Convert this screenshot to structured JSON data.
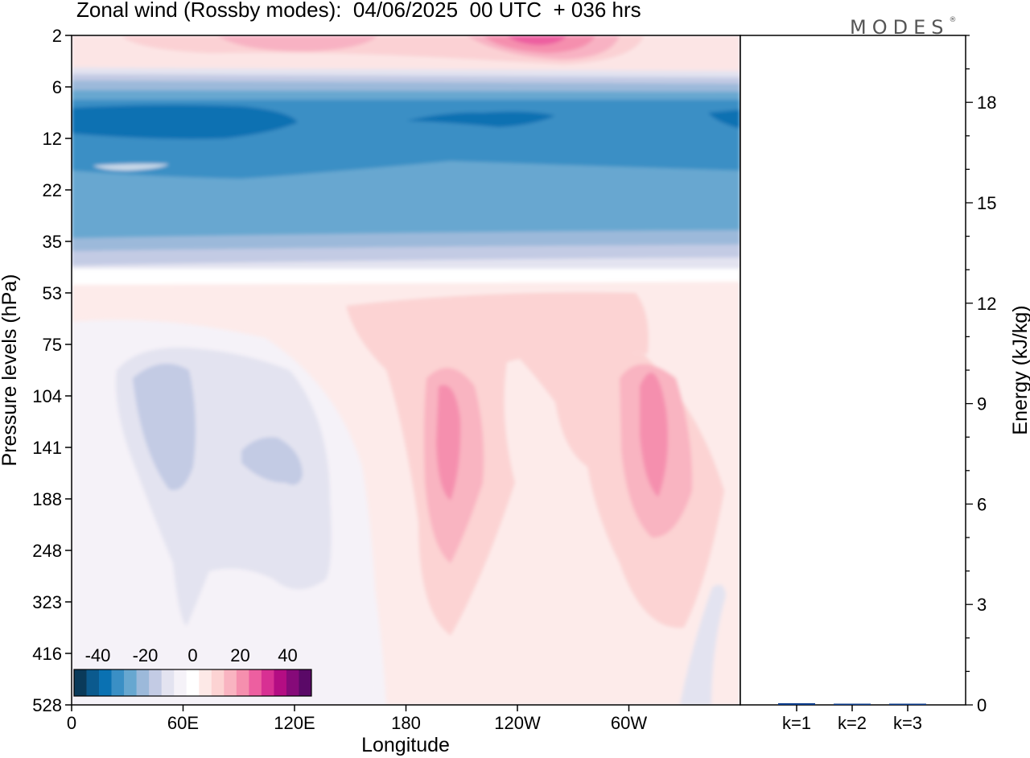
{
  "title": "Zonal wind (Rossby modes):  04/06/2025  00 UTC  + 036 hrs",
  "logo_text": "MODES",
  "chart_data": [
    {
      "type": "heatmap",
      "title": "Zonal wind (Rossby modes):  04/06/2025  00 UTC  + 036 hrs",
      "xlabel": "Longitude",
      "ylabel": "Pressure levels (hPa)",
      "x_ticks": [
        "0",
        "60E",
        "120E",
        "180",
        "120W",
        "60W"
      ],
      "x_tick_positions_deg": [
        0,
        60,
        120,
        180,
        240,
        300
      ],
      "xlim": [
        0,
        360
      ],
      "y_ticks": [
        "2",
        "6",
        "12",
        "22",
        "35",
        "53",
        "75",
        "104",
        "141",
        "188",
        "248",
        "323",
        "416",
        "528"
      ],
      "colorbar": {
        "tick_labels": [
          "-40",
          "-20",
          "0",
          "20",
          "40"
        ],
        "tick_values": [
          -40,
          -20,
          0,
          20,
          40
        ],
        "range": [
          -50,
          50
        ],
        "colors": [
          "#0a3a5a",
          "#0b5a8e",
          "#0a71b2",
          "#3a8fc5",
          "#67a7d0",
          "#9cb9da",
          "#c3cbe4",
          "#e3e3f0",
          "#f5f2f8",
          "#ffffff",
          "#fde9e7",
          "#fcd3d3",
          "#f9b4c1",
          "#f58fae",
          "#ed5fa0",
          "#d83093",
          "#b40d83",
          "#860a79",
          "#5a0967"
        ]
      },
      "bands": [
        {
          "level": "2",
          "min_value": 5,
          "max_value": 35
        },
        {
          "level": "6",
          "min_value": -20,
          "max_value": -10
        },
        {
          "level": "12",
          "min_value": -30,
          "max_value": -25
        },
        {
          "level": "22",
          "min_value": -25,
          "max_value": -15
        },
        {
          "level": "35",
          "min_value": -15,
          "max_value": -5
        },
        {
          "level": "53",
          "min_value": 0,
          "max_value": 10
        },
        {
          "level": "141",
          "min_value": -10,
          "max_value": 25
        }
      ]
    },
    {
      "type": "bar",
      "categories": [
        "k=1",
        "k=2",
        "k=3"
      ],
      "values": [
        0.05,
        0.03,
        0.02
      ],
      "ylabel": "Energy (kJ/kg)",
      "ylim": [
        0,
        20
      ],
      "y_ticks": [
        0,
        3,
        6,
        9,
        12,
        15,
        18
      ],
      "bar_color": "#0a3a8a"
    }
  ]
}
